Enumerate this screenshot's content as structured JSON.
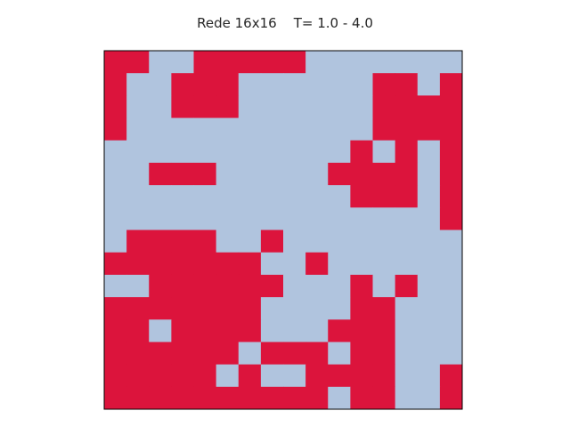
{
  "chart_data": {
    "type": "heatmap",
    "title": "Rede 16x16    T= 1.0 - 4.0",
    "xlabel": "",
    "ylabel": "",
    "grid": false,
    "size": 16,
    "colors": {
      "1": "#dc143c",
      "0": "#b0c4de",
      "frame": "#000000"
    },
    "rows": [
      [
        1,
        1,
        0,
        0,
        1,
        1,
        1,
        1,
        1,
        0,
        0,
        0,
        0,
        0,
        0,
        0
      ],
      [
        1,
        0,
        0,
        1,
        1,
        1,
        0,
        0,
        0,
        0,
        0,
        0,
        1,
        1,
        0,
        1
      ],
      [
        1,
        0,
        0,
        1,
        1,
        1,
        0,
        0,
        0,
        0,
        0,
        0,
        1,
        1,
        1,
        1
      ],
      [
        1,
        0,
        0,
        0,
        0,
        0,
        0,
        0,
        0,
        0,
        0,
        0,
        1,
        1,
        1,
        1
      ],
      [
        0,
        0,
        0,
        0,
        0,
        0,
        0,
        0,
        0,
        0,
        0,
        1,
        0,
        1,
        0,
        1
      ],
      [
        0,
        0,
        1,
        1,
        1,
        0,
        0,
        0,
        0,
        0,
        1,
        1,
        1,
        1,
        0,
        1
      ],
      [
        0,
        0,
        0,
        0,
        0,
        0,
        0,
        0,
        0,
        0,
        0,
        1,
        1,
        1,
        0,
        1
      ],
      [
        0,
        0,
        0,
        0,
        0,
        0,
        0,
        0,
        0,
        0,
        0,
        0,
        0,
        0,
        0,
        1
      ],
      [
        0,
        1,
        1,
        1,
        1,
        0,
        0,
        1,
        0,
        0,
        0,
        0,
        0,
        0,
        0,
        0
      ],
      [
        1,
        1,
        1,
        1,
        1,
        1,
        1,
        0,
        0,
        1,
        0,
        0,
        0,
        0,
        0,
        0
      ],
      [
        0,
        0,
        1,
        1,
        1,
        1,
        1,
        1,
        0,
        0,
        0,
        1,
        0,
        1,
        0,
        0
      ],
      [
        1,
        1,
        1,
        1,
        1,
        1,
        1,
        0,
        0,
        0,
        0,
        1,
        1,
        0,
        0,
        0
      ],
      [
        1,
        1,
        0,
        1,
        1,
        1,
        1,
        0,
        0,
        0,
        1,
        1,
        1,
        0,
        0,
        0
      ],
      [
        1,
        1,
        1,
        1,
        1,
        1,
        0,
        1,
        1,
        1,
        0,
        1,
        1,
        0,
        0,
        0
      ],
      [
        1,
        1,
        1,
        1,
        1,
        0,
        1,
        0,
        0,
        1,
        1,
        1,
        1,
        0,
        0,
        1
      ],
      [
        1,
        1,
        1,
        1,
        1,
        1,
        1,
        1,
        1,
        1,
        0,
        1,
        1,
        0,
        0,
        1
      ]
    ]
  }
}
